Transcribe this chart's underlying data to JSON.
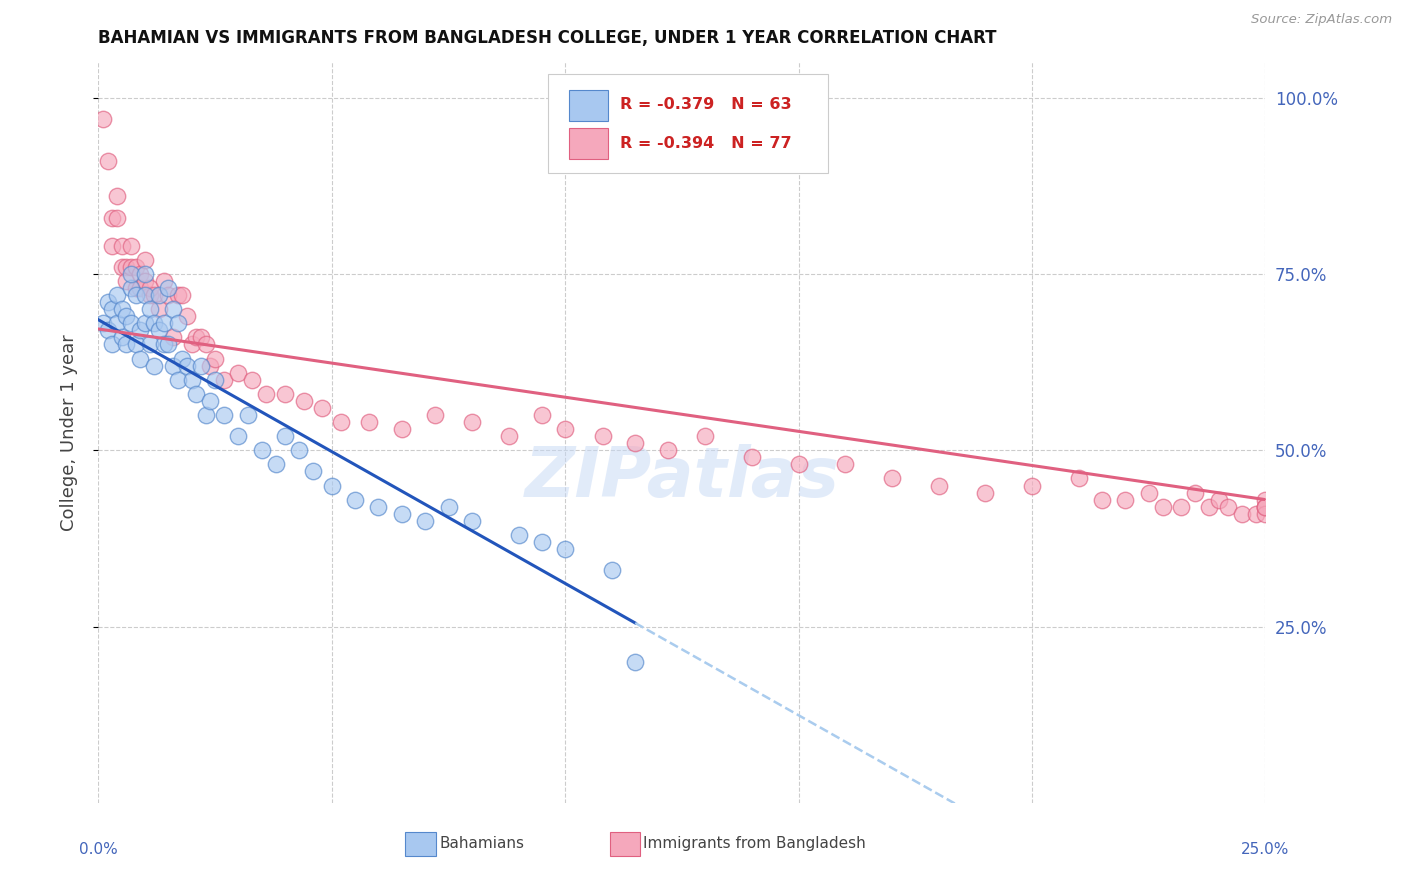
{
  "title": "BAHAMIAN VS IMMIGRANTS FROM BANGLADESH COLLEGE, UNDER 1 YEAR CORRELATION CHART",
  "source": "Source: ZipAtlas.com",
  "ylabel": "College, Under 1 year",
  "right_ytick_labels": [
    "100.0%",
    "75.0%",
    "50.0%",
    "25.0%"
  ],
  "right_ytick_positions": [
    1.0,
    0.75,
    0.5,
    0.25
  ],
  "xlim": [
    0.0,
    0.25
  ],
  "ylim": [
    0.0,
    1.05
  ],
  "bahamian_color": "#A8C8F0",
  "bangladesh_color": "#F5A8BC",
  "bahamian_edge": "#5588CC",
  "bangladesh_edge": "#E06080",
  "bahamian_label": "Bahamians",
  "bangladesh_label": "Immigrants from Bangladesh",
  "R_bahamian": -0.379,
  "N_bahamian": 63,
  "R_bangladesh": -0.394,
  "N_bangladesh": 77,
  "trend_bahamian_color": "#2255BB",
  "trend_bangladesh_color": "#E06080",
  "trend_dashed_color": "#AACCEE",
  "watermark": "ZIPatlas",
  "grid_color": "#CCCCCC",
  "title_color": "#111111",
  "axis_label_color": "#4466BB",
  "source_color": "#999999",
  "bah_line_x0": 0.0,
  "bah_line_y0": 0.685,
  "bah_line_x1": 0.115,
  "bah_line_y1": 0.255,
  "ban_line_x0": 0.0,
  "ban_line_y0": 0.672,
  "ban_line_x1": 0.25,
  "ban_line_y1": 0.43,
  "bahamian_x": [
    0.001,
    0.002,
    0.002,
    0.003,
    0.003,
    0.004,
    0.004,
    0.005,
    0.005,
    0.006,
    0.006,
    0.007,
    0.007,
    0.007,
    0.008,
    0.008,
    0.009,
    0.009,
    0.01,
    0.01,
    0.01,
    0.011,
    0.011,
    0.012,
    0.012,
    0.013,
    0.013,
    0.014,
    0.014,
    0.015,
    0.015,
    0.016,
    0.016,
    0.017,
    0.017,
    0.018,
    0.019,
    0.02,
    0.021,
    0.022,
    0.023,
    0.024,
    0.025,
    0.027,
    0.03,
    0.032,
    0.035,
    0.038,
    0.04,
    0.043,
    0.046,
    0.05,
    0.055,
    0.06,
    0.065,
    0.07,
    0.075,
    0.08,
    0.09,
    0.095,
    0.1,
    0.11,
    0.115
  ],
  "bahamian_y": [
    0.68,
    0.67,
    0.71,
    0.7,
    0.65,
    0.72,
    0.68,
    0.66,
    0.7,
    0.69,
    0.65,
    0.73,
    0.68,
    0.75,
    0.72,
    0.65,
    0.67,
    0.63,
    0.72,
    0.68,
    0.75,
    0.7,
    0.65,
    0.68,
    0.62,
    0.67,
    0.72,
    0.65,
    0.68,
    0.73,
    0.65,
    0.7,
    0.62,
    0.68,
    0.6,
    0.63,
    0.62,
    0.6,
    0.58,
    0.62,
    0.55,
    0.57,
    0.6,
    0.55,
    0.52,
    0.55,
    0.5,
    0.48,
    0.52,
    0.5,
    0.47,
    0.45,
    0.43,
    0.42,
    0.41,
    0.4,
    0.42,
    0.4,
    0.38,
    0.37,
    0.36,
    0.33,
    0.2
  ],
  "bangladesh_x": [
    0.001,
    0.002,
    0.003,
    0.003,
    0.004,
    0.004,
    0.005,
    0.005,
    0.006,
    0.006,
    0.007,
    0.007,
    0.008,
    0.008,
    0.009,
    0.009,
    0.01,
    0.01,
    0.011,
    0.011,
    0.012,
    0.013,
    0.014,
    0.015,
    0.016,
    0.017,
    0.018,
    0.019,
    0.02,
    0.021,
    0.022,
    0.023,
    0.024,
    0.025,
    0.027,
    0.03,
    0.033,
    0.036,
    0.04,
    0.044,
    0.048,
    0.052,
    0.058,
    0.065,
    0.072,
    0.08,
    0.088,
    0.095,
    0.1,
    0.108,
    0.115,
    0.122,
    0.13,
    0.14,
    0.15,
    0.16,
    0.17,
    0.18,
    0.19,
    0.2,
    0.21,
    0.215,
    0.22,
    0.225,
    0.228,
    0.232,
    0.235,
    0.238,
    0.24,
    0.242,
    0.245,
    0.248,
    0.25,
    0.25,
    0.25,
    0.25,
    0.25
  ],
  "bangladesh_y": [
    0.97,
    0.91,
    0.83,
    0.79,
    0.83,
    0.86,
    0.79,
    0.76,
    0.76,
    0.74,
    0.79,
    0.76,
    0.73,
    0.76,
    0.75,
    0.73,
    0.77,
    0.74,
    0.72,
    0.73,
    0.72,
    0.7,
    0.74,
    0.72,
    0.66,
    0.72,
    0.72,
    0.69,
    0.65,
    0.66,
    0.66,
    0.65,
    0.62,
    0.63,
    0.6,
    0.61,
    0.6,
    0.58,
    0.58,
    0.57,
    0.56,
    0.54,
    0.54,
    0.53,
    0.55,
    0.54,
    0.52,
    0.55,
    0.53,
    0.52,
    0.51,
    0.5,
    0.52,
    0.49,
    0.48,
    0.48,
    0.46,
    0.45,
    0.44,
    0.45,
    0.46,
    0.43,
    0.43,
    0.44,
    0.42,
    0.42,
    0.44,
    0.42,
    0.43,
    0.42,
    0.41,
    0.41,
    0.42,
    0.43,
    0.42,
    0.41,
    0.42
  ]
}
